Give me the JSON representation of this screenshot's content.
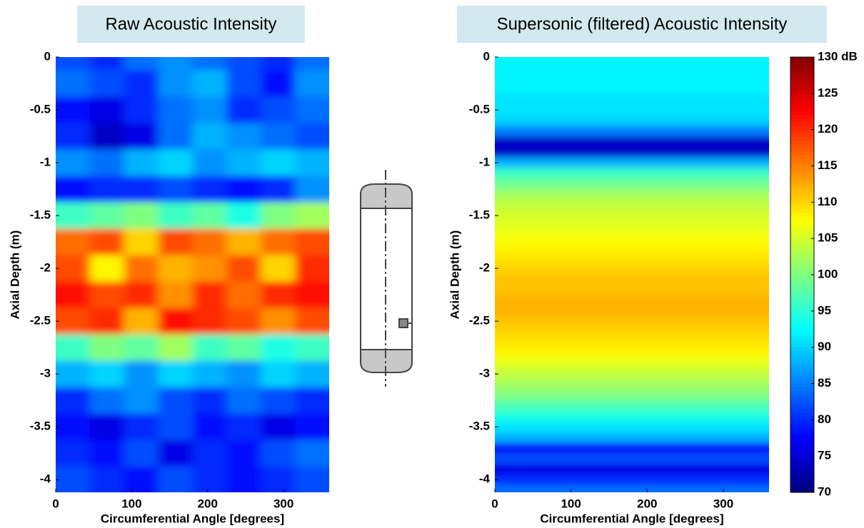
{
  "chart_data": [
    {
      "type": "heatmap",
      "title": "Raw Acoustic Intensity",
      "xlabel": "Circumferential Angle [degrees]",
      "ylabel": "Axial Depth (m)",
      "xlim": [
        0,
        360
      ],
      "ylim": [
        -4.12,
        0
      ],
      "xticks": [
        0,
        100,
        200,
        300
      ],
      "yticks": [
        0,
        -0.5,
        -1,
        -1.5,
        -2,
        -2.5,
        -3,
        -3.5,
        -4
      ],
      "colormap": "jet",
      "zlim": [
        70,
        130
      ],
      "x": [
        22.5,
        67.5,
        112.5,
        157.5,
        202.5,
        247.5,
        292.5,
        337.5
      ],
      "y": [
        0,
        -0.25,
        -0.5,
        -0.75,
        -1,
        -1.25,
        -1.5,
        -1.75,
        -2,
        -2.25,
        -2.5,
        -2.75,
        -3,
        -3.25,
        -3.5,
        -3.75,
        -4
      ],
      "z": [
        [
          82,
          80,
          84,
          86,
          84,
          82,
          80,
          84
        ],
        [
          84,
          82,
          80,
          86,
          88,
          82,
          78,
          86
        ],
        [
          78,
          76,
          80,
          84,
          86,
          80,
          82,
          84
        ],
        [
          80,
          74,
          76,
          84,
          88,
          86,
          84,
          82
        ],
        [
          86,
          84,
          88,
          90,
          86,
          88,
          90,
          88
        ],
        [
          78,
          80,
          80,
          82,
          80,
          78,
          80,
          86
        ],
        [
          96,
          98,
          100,
          96,
          98,
          94,
          100,
          102
        ],
        [
          116,
          118,
          110,
          118,
          116,
          112,
          116,
          118
        ],
        [
          118,
          108,
          116,
          112,
          114,
          118,
          110,
          120
        ],
        [
          122,
          118,
          120,
          114,
          120,
          116,
          120,
          122
        ],
        [
          118,
          120,
          112,
          122,
          120,
          118,
          114,
          118
        ],
        [
          96,
          100,
          98,
          102,
          96,
          98,
          94,
          96
        ],
        [
          88,
          90,
          86,
          90,
          88,
          86,
          90,
          88
        ],
        [
          80,
          84,
          86,
          82,
          80,
          84,
          82,
          80
        ],
        [
          78,
          76,
          80,
          82,
          78,
          80,
          76,
          78
        ],
        [
          80,
          78,
          82,
          76,
          80,
          78,
          82,
          84
        ],
        [
          82,
          80,
          78,
          82,
          80,
          78,
          80,
          82
        ]
      ]
    },
    {
      "type": "heatmap",
      "title": "Supersonic (filtered) Acoustic Intensity",
      "xlabel": "Circumferential Angle [degrees]",
      "ylabel": "Axial Depth (m)",
      "xlim": [
        0,
        360
      ],
      "ylim": [
        -4.12,
        0
      ],
      "xticks": [
        0,
        100,
        200,
        300
      ],
      "yticks": [
        0,
        -0.5,
        -1,
        -1.5,
        -2,
        -2.5,
        -3,
        -3.5,
        -4
      ],
      "colormap": "jet",
      "zlim": [
        70,
        130
      ],
      "zticks": [
        70,
        75,
        80,
        85,
        90,
        95,
        100,
        105,
        110,
        115,
        120,
        125,
        {
          "value": 130,
          "label": "130 dB"
        }
      ],
      "x": [
        180
      ],
      "y": [
        0,
        -0.1,
        -0.2,
        -0.3,
        -0.4,
        -0.5,
        -0.6,
        -0.7,
        -0.8,
        -0.9,
        -1,
        -1.1,
        -1.2,
        -1.3,
        -1.4,
        -1.5,
        -1.6,
        -1.7,
        -1.8,
        -1.9,
        -2,
        -2.1,
        -2.2,
        -2.3,
        -2.4,
        -2.5,
        -2.6,
        -2.7,
        -2.8,
        -2.9,
        -3,
        -3.1,
        -3.2,
        -3.3,
        -3.4,
        -3.5,
        -3.6,
        -3.7,
        -3.8,
        -3.9,
        -4,
        -4.1
      ],
      "z": [
        [
          92
        ],
        [
          92
        ],
        [
          92
        ],
        [
          92
        ],
        [
          91
        ],
        [
          91
        ],
        [
          90
        ],
        [
          85
        ],
        [
          74
        ],
        [
          74
        ],
        [
          88
        ],
        [
          96
        ],
        [
          99
        ],
        [
          102
        ],
        [
          104
        ],
        [
          105
        ],
        [
          106
        ],
        [
          107
        ],
        [
          108
        ],
        [
          109
        ],
        [
          110
        ],
        [
          111
        ],
        [
          111
        ],
        [
          112
        ],
        [
          112
        ],
        [
          111
        ],
        [
          110
        ],
        [
          109
        ],
        [
          108
        ],
        [
          106
        ],
        [
          104
        ],
        [
          102
        ],
        [
          100
        ],
        [
          97
        ],
        [
          94
        ],
        [
          91
        ],
        [
          88
        ],
        [
          77
        ],
        [
          82
        ],
        [
          76
        ],
        [
          80
        ],
        [
          84
        ]
      ]
    }
  ]
}
